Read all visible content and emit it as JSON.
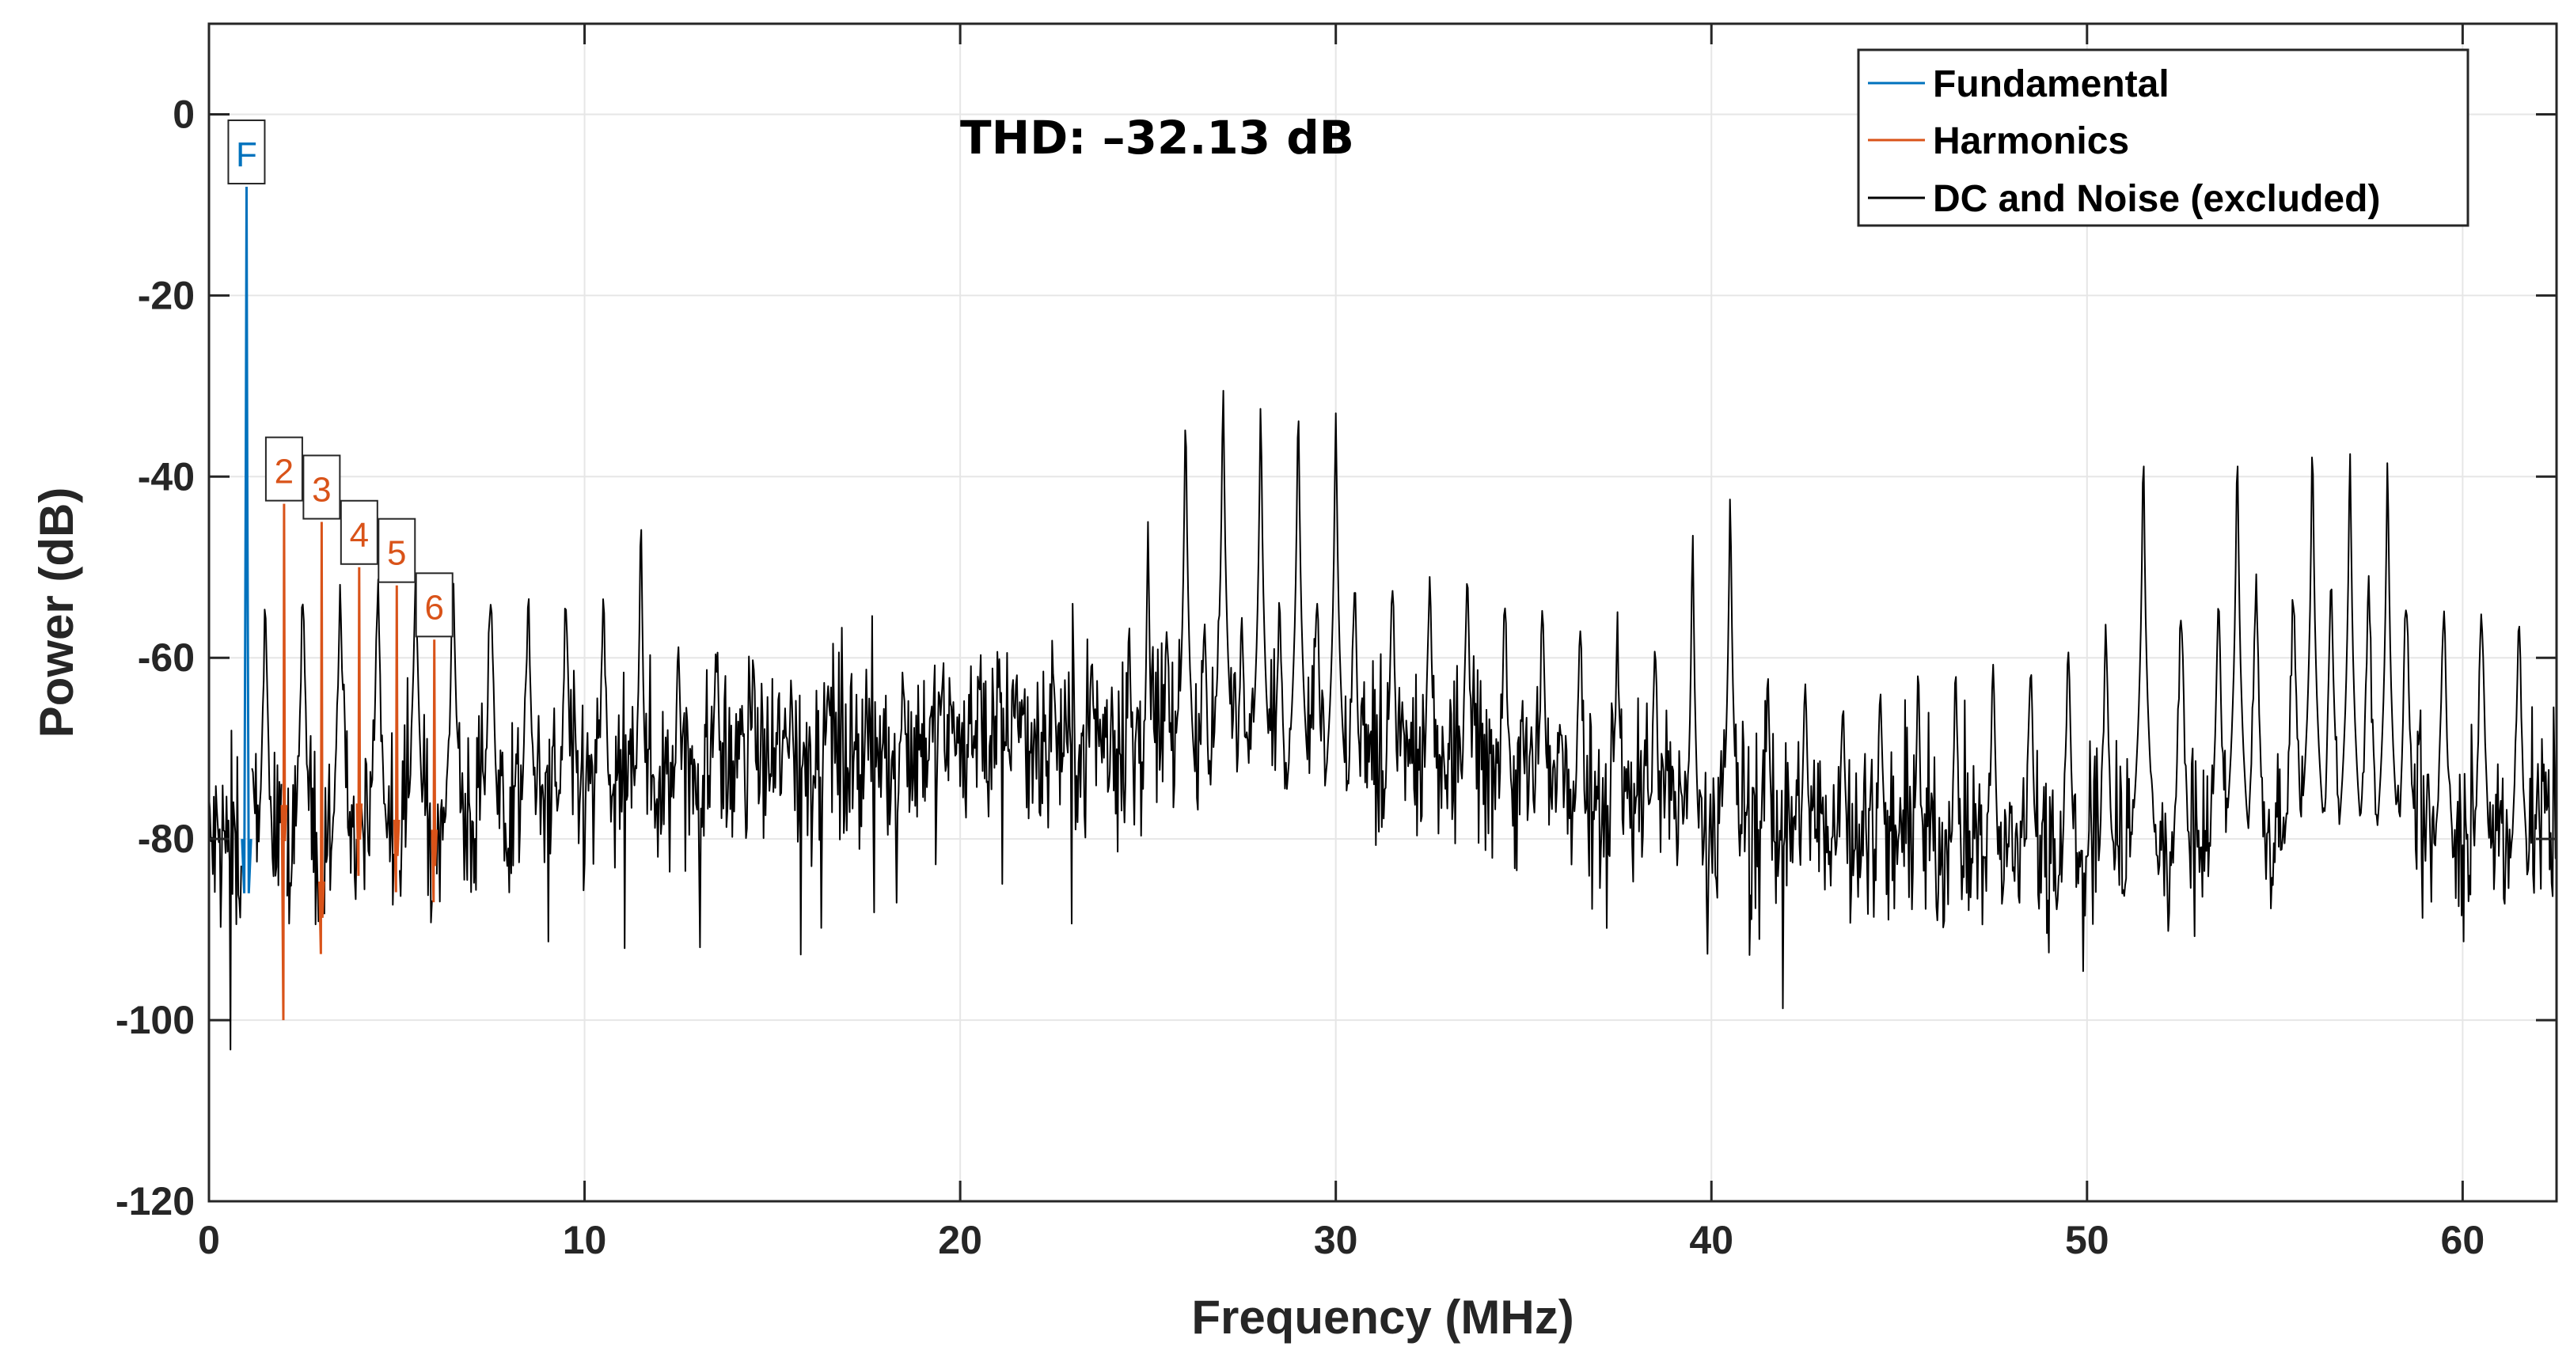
{
  "chart_data": {
    "type": "line",
    "title": "",
    "xlabel": "Frequency (MHz)",
    "ylabel": "Power (dB)",
    "xlim": [
      0,
      62.5
    ],
    "ylim": [
      -120,
      10
    ],
    "xticks": [
      0,
      10,
      20,
      30,
      40,
      50,
      60
    ],
    "yticks": [
      0,
      -20,
      -40,
      -60,
      -80,
      -100,
      -120
    ],
    "grid": true,
    "legend_position": "top-right",
    "annotation": "THD: –32.13 dB",
    "series": [
      {
        "name": "Fundamental",
        "color": "#0072BD",
        "peaks": [
          {
            "x": 1.0,
            "y": -8
          }
        ]
      },
      {
        "name": "Harmonics",
        "color": "#D95319",
        "peaks": [
          {
            "x": 2.0,
            "y": -43
          },
          {
            "x": 3.0,
            "y": -45
          },
          {
            "x": 4.0,
            "y": -50
          },
          {
            "x": 5.0,
            "y": -52
          },
          {
            "x": 6.0,
            "y": -58
          }
        ]
      },
      {
        "name": "DC and Noise (excluded)",
        "color": "#000000",
        "noise_floor": -75,
        "spurs": [
          {
            "x": 11.5,
            "y": -44
          },
          {
            "x": 25.0,
            "y": -45
          },
          {
            "x": 26.0,
            "y": -33
          },
          {
            "x": 27.0,
            "y": -30
          },
          {
            "x": 28.0,
            "y": -32
          },
          {
            "x": 29.0,
            "y": -32
          },
          {
            "x": 30.0,
            "y": -33
          },
          {
            "x": 39.5,
            "y": -46
          },
          {
            "x": 40.5,
            "y": -42
          },
          {
            "x": 51.5,
            "y": -37
          },
          {
            "x": 54.0,
            "y": -37
          },
          {
            "x": 56.0,
            "y": -36
          },
          {
            "x": 57.0,
            "y": -37
          },
          {
            "x": 58.0,
            "y": -38
          }
        ]
      }
    ],
    "peak_labels": [
      {
        "text": "F",
        "x": 1.0,
        "y": -8,
        "color": "#0072BD"
      },
      {
        "text": "2",
        "x": 2.0,
        "y": -43,
        "color": "#D95319"
      },
      {
        "text": "3",
        "x": 3.0,
        "y": -45,
        "color": "#D95319"
      },
      {
        "text": "4",
        "x": 4.0,
        "y": -50,
        "color": "#D95319"
      },
      {
        "text": "5",
        "x": 5.0,
        "y": -52,
        "color": "#D95319"
      },
      {
        "text": "6",
        "x": 6.0,
        "y": -58,
        "color": "#D95319"
      }
    ]
  }
}
